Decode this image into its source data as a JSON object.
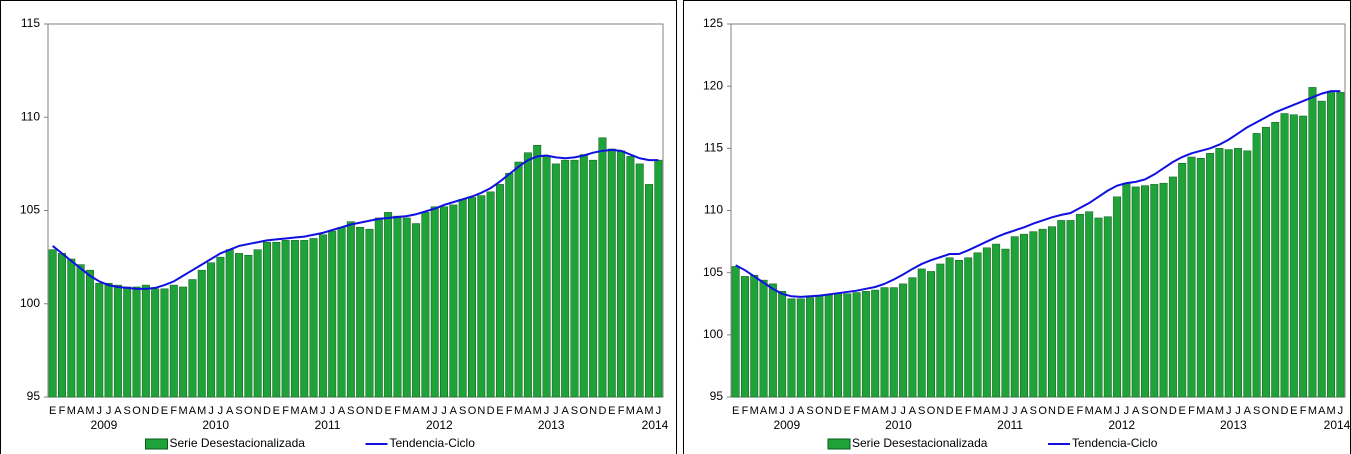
{
  "chart_data": [
    {
      "type": "bar",
      "ylim": [
        95,
        115
      ],
      "yticks": [
        95,
        100,
        105,
        110,
        115
      ],
      "categories": [
        "E",
        "F",
        "M",
        "A",
        "M",
        "J",
        "J",
        "A",
        "S",
        "O",
        "N",
        "D",
        "E",
        "F",
        "M",
        "A",
        "M",
        "J",
        "J",
        "A",
        "S",
        "O",
        "N",
        "D",
        "E",
        "F",
        "M",
        "A",
        "M",
        "J",
        "J",
        "A",
        "S",
        "O",
        "N",
        "D",
        "E",
        "F",
        "M",
        "A",
        "M",
        "J",
        "J",
        "A",
        "S",
        "O",
        "N",
        "D",
        "E",
        "F",
        "M",
        "A",
        "M",
        "J",
        "J",
        "A",
        "S",
        "O",
        "N",
        "D",
        "E",
        "F",
        "M",
        "A",
        "M",
        "J"
      ],
      "year_labels": [
        "2009",
        "2010",
        "2011",
        "2012",
        "2013",
        "2014"
      ],
      "series": [
        {
          "name": "Serie Desestacionalizada",
          "type": "bar",
          "color": "#1fa339",
          "values": [
            102.9,
            102.7,
            102.4,
            102.1,
            101.8,
            101.1,
            101.1,
            101.0,
            100.9,
            100.9,
            101.0,
            100.8,
            100.8,
            101.0,
            100.9,
            101.3,
            101.8,
            102.2,
            102.5,
            102.9,
            102.7,
            102.6,
            102.9,
            103.3,
            103.3,
            103.4,
            103.4,
            103.4,
            103.5,
            103.7,
            103.9,
            104.1,
            104.4,
            104.1,
            104.0,
            104.6,
            104.9,
            104.7,
            104.6,
            104.3,
            104.9,
            105.2,
            105.2,
            105.3,
            105.6,
            105.7,
            105.8,
            106.0,
            106.4,
            107.0,
            107.6,
            108.1,
            108.5,
            107.9,
            107.5,
            107.7,
            107.7,
            108.0,
            107.7,
            108.9,
            108.3,
            108.2,
            107.9,
            107.5,
            106.4,
            107.7
          ]
        },
        {
          "name": "Tendencia-Ciclo",
          "type": "line",
          "color": "#1010e0",
          "values": [
            103.1,
            102.7,
            102.3,
            101.9,
            101.5,
            101.2,
            101.0,
            100.9,
            100.85,
            100.8,
            100.8,
            100.85,
            101.0,
            101.2,
            101.5,
            101.8,
            102.1,
            102.4,
            102.7,
            102.9,
            103.1,
            103.2,
            103.3,
            103.4,
            103.45,
            103.5,
            103.55,
            103.6,
            103.7,
            103.8,
            103.95,
            104.1,
            104.25,
            104.35,
            104.45,
            104.55,
            104.6,
            104.65,
            104.7,
            104.8,
            104.95,
            105.1,
            105.3,
            105.45,
            105.6,
            105.75,
            105.95,
            106.2,
            106.55,
            106.95,
            107.35,
            107.7,
            107.9,
            107.95,
            107.85,
            107.8,
            107.85,
            107.95,
            108.1,
            108.2,
            108.25,
            108.2,
            108.0,
            107.8,
            107.7,
            107.7
          ]
        }
      ]
    },
    {
      "type": "bar",
      "ylim": [
        95,
        125
      ],
      "yticks": [
        95,
        100,
        105,
        110,
        115,
        120,
        125
      ],
      "categories": [
        "E",
        "F",
        "M",
        "A",
        "M",
        "J",
        "J",
        "A",
        "S",
        "O",
        "N",
        "D",
        "E",
        "F",
        "M",
        "A",
        "M",
        "J",
        "J",
        "A",
        "S",
        "O",
        "N",
        "D",
        "E",
        "F",
        "M",
        "A",
        "M",
        "J",
        "J",
        "A",
        "S",
        "O",
        "N",
        "D",
        "E",
        "F",
        "M",
        "A",
        "M",
        "J",
        "J",
        "A",
        "S",
        "O",
        "N",
        "D",
        "E",
        "F",
        "M",
        "A",
        "M",
        "J",
        "J",
        "A",
        "S",
        "O",
        "N",
        "D",
        "E",
        "F",
        "M",
        "A",
        "M",
        "J"
      ],
      "year_labels": [
        "2009",
        "2010",
        "2011",
        "2012",
        "2013",
        "2014"
      ],
      "series": [
        {
          "name": "Serie Desestacionalizada",
          "type": "bar",
          "color": "#1fa339",
          "values": [
            105.5,
            104.7,
            104.8,
            104.4,
            104.1,
            103.5,
            102.9,
            102.9,
            103.0,
            103.1,
            103.2,
            103.3,
            103.3,
            103.4,
            103.5,
            103.6,
            103.8,
            103.8,
            104.1,
            104.6,
            105.3,
            105.1,
            105.7,
            106.2,
            106.0,
            106.2,
            106.6,
            107.0,
            107.3,
            106.9,
            107.9,
            108.1,
            108.3,
            108.5,
            108.7,
            109.2,
            109.2,
            109.7,
            109.9,
            109.4,
            109.5,
            111.1,
            112.2,
            111.9,
            112.0,
            112.1,
            112.2,
            112.7,
            113.8,
            114.3,
            114.2,
            114.6,
            115.0,
            114.9,
            115.0,
            114.8,
            116.2,
            116.7,
            117.1,
            117.8,
            117.7,
            117.6,
            119.9,
            118.8,
            119.6,
            119.5
          ]
        },
        {
          "name": "Tendencia-Ciclo",
          "type": "line",
          "color": "#1010e0",
          "values": [
            105.6,
            105.2,
            104.7,
            104.2,
            103.7,
            103.3,
            103.1,
            103.05,
            103.1,
            103.15,
            103.25,
            103.35,
            103.45,
            103.55,
            103.7,
            103.85,
            104.1,
            104.45,
            104.85,
            105.3,
            105.7,
            106.0,
            106.25,
            106.5,
            106.5,
            106.8,
            107.15,
            107.5,
            107.85,
            108.15,
            108.4,
            108.65,
            108.95,
            109.2,
            109.45,
            109.65,
            109.8,
            110.2,
            110.6,
            111.1,
            111.6,
            112.0,
            112.2,
            112.3,
            112.5,
            112.9,
            113.4,
            113.9,
            114.3,
            114.6,
            114.8,
            115.0,
            115.3,
            115.7,
            116.2,
            116.7,
            117.1,
            117.5,
            117.9,
            118.2,
            118.5,
            118.8,
            119.1,
            119.4,
            119.6,
            119.6
          ]
        }
      ]
    }
  ]
}
